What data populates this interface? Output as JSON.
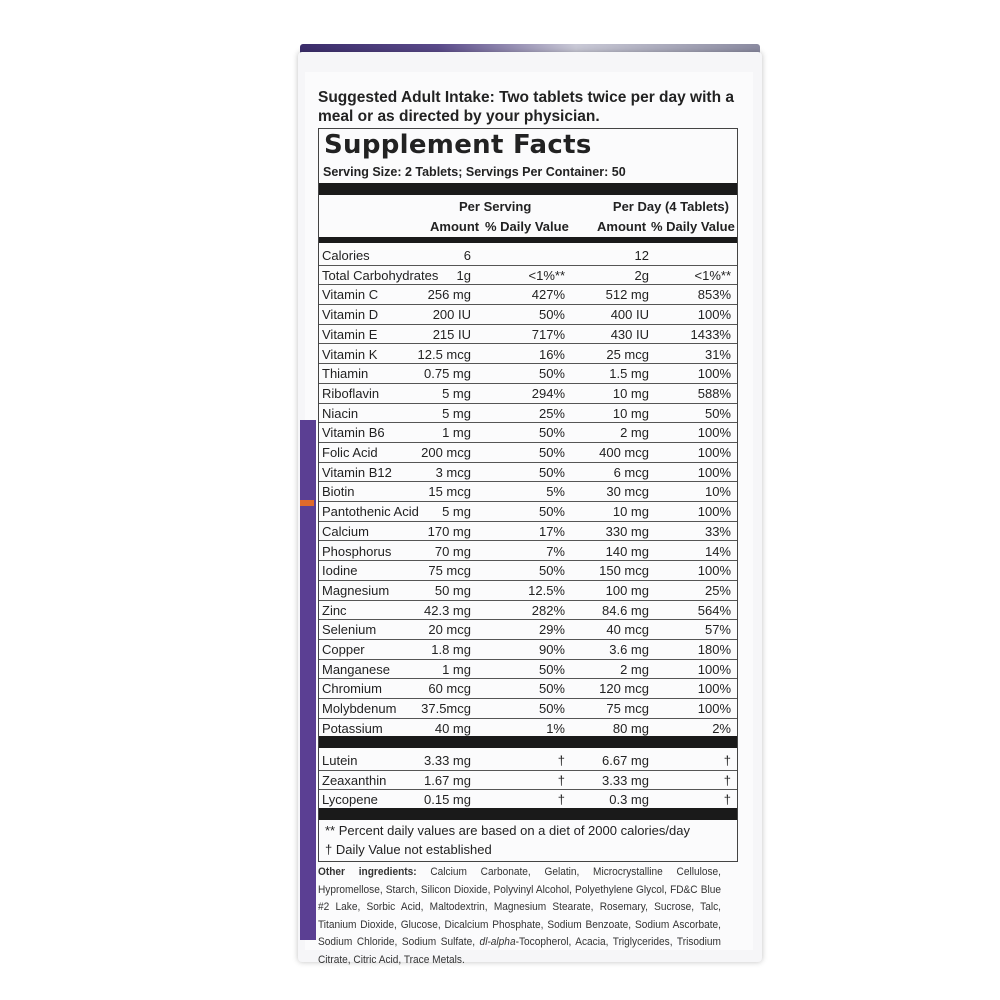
{
  "intake": "Suggested Adult Intake: Two tablets twice per day with a meal or as directed by your physician.",
  "title": "Supplement Facts",
  "serving": "Serving Size: 2 Tablets; Servings Per Container: 50",
  "headers": {
    "per_serving": "Per Serving",
    "per_day": "Per Day (4 Tablets)",
    "amount": "Amount",
    "dv": "% Daily Value"
  },
  "rows": [
    [
      "Calories",
      "6",
      "",
      "12",
      ""
    ],
    [
      "Total Carbohydrates",
      "1g",
      "<1%**",
      "2g",
      "<1%**"
    ],
    [
      "Vitamin C",
      "256 mg",
      "427%",
      "512 mg",
      "853%"
    ],
    [
      "Vitamin D",
      "200 IU",
      "50%",
      "400 IU",
      "100%"
    ],
    [
      "Vitamin E",
      "215 IU",
      "717%",
      "430 IU",
      "1433%"
    ],
    [
      "Vitamin K",
      "12.5 mcg",
      "16%",
      "25 mcg",
      "31%"
    ],
    [
      "Thiamin",
      "0.75 mg",
      "50%",
      "1.5 mg",
      "100%"
    ],
    [
      "Riboflavin",
      "5 mg",
      "294%",
      "10 mg",
      "588%"
    ],
    [
      "Niacin",
      "5 mg",
      "25%",
      "10 mg",
      "50%"
    ],
    [
      "Vitamin B6",
      "1 mg",
      "50%",
      "2 mg",
      "100%"
    ],
    [
      "Folic Acid",
      "200 mcg",
      "50%",
      "400 mcg",
      "100%"
    ],
    [
      "Vitamin B12",
      "3 mcg",
      "50%",
      "6 mcg",
      "100%"
    ],
    [
      "Biotin",
      "15 mcg",
      "5%",
      "30 mcg",
      "10%"
    ],
    [
      "Pantothenic Acid",
      "5 mg",
      "50%",
      "10 mg",
      "100%"
    ],
    [
      "Calcium",
      "170 mg",
      "17%",
      "330 mg",
      "33%"
    ],
    [
      "Phosphorus",
      "70 mg",
      "7%",
      "140 mg",
      "14%"
    ],
    [
      "Iodine",
      "75 mcg",
      "50%",
      "150 mcg",
      "100%"
    ],
    [
      "Magnesium",
      "50 mg",
      "12.5%",
      "100 mg",
      "25%"
    ],
    [
      "Zinc",
      "42.3 mg",
      "282%",
      "84.6 mg",
      "564%"
    ],
    [
      "Selenium",
      "20 mcg",
      "29%",
      "40 mcg",
      "57%"
    ],
    [
      "Copper",
      "1.8 mg",
      "90%",
      "3.6 mg",
      "180%"
    ],
    [
      "Manganese",
      "1 mg",
      "50%",
      "2 mg",
      "100%"
    ],
    [
      "Chromium",
      "60 mcg",
      "50%",
      "120 mcg",
      "100%"
    ],
    [
      "Molybdenum",
      "37.5mcg",
      "50%",
      "75 mcg",
      "100%"
    ],
    [
      "Potassium",
      "40 mg",
      "1%",
      "80 mg",
      "2%"
    ]
  ],
  "rows2": [
    [
      "Lutein",
      "3.33 mg",
      "†",
      "6.67 mg",
      "†"
    ],
    [
      "Zeaxanthin",
      "1.67 mg",
      "†",
      "3.33 mg",
      "†"
    ],
    [
      "Lycopene",
      "0.15 mg",
      "†",
      "0.3 mg",
      "†"
    ]
  ],
  "footnotes": [
    "** Percent daily values are based on a diet of 2000 calories/day",
    "† Daily Value not established"
  ],
  "other": {
    "label": "Other ingredients:",
    "text": " Calcium Carbonate, Gelatin, Microcrystalline Cellulose, Hypromellose, Starch, Silicon Dioxide, Polyvinyl Alcohol, Polyethylene Glycol, FD&C Blue #2 Lake, Sorbic Acid, Maltodextrin, Magnesium Stearate, Rosemary, Sucrose, Talc, Titanium Dioxide, Glucose, Dicalcium Phosphate, Sodium Benzoate, Sodium Ascorbate, Sodium Chloride, Sodium Sulfate, ",
    "italic": "dl-alpha",
    "tail": "-Tocopherol, Acacia, Triglycerides, Trisodium Citrate, Citric Acid, Trace Metals."
  }
}
